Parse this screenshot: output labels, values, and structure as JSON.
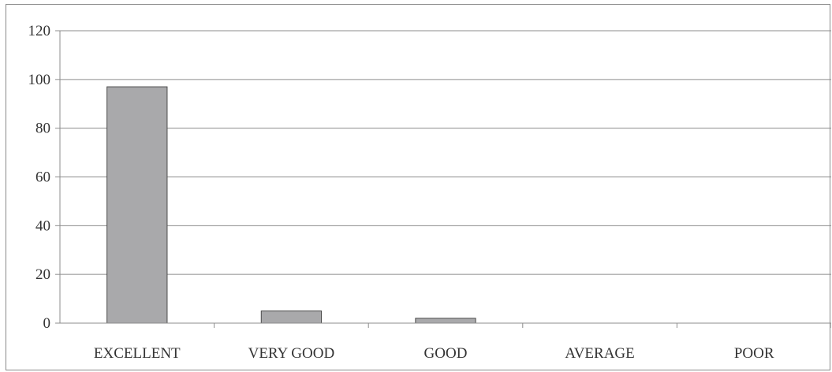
{
  "chart_data": {
    "type": "bar",
    "categories": [
      "EXCELLENT",
      "VERY GOOD",
      "GOOD",
      "AVERAGE",
      "POOR"
    ],
    "values": [
      97,
      5,
      2,
      0,
      0
    ],
    "ylim": [
      0,
      120
    ],
    "yticks": [
      "0",
      "20",
      "40",
      "60",
      "80",
      "100",
      "120"
    ],
    "grid": true,
    "legend": "none",
    "colors": {
      "bar_fill": "#a9a9ab",
      "bar_stroke": "#4a4a4a",
      "grid": "#8c8c8c",
      "axis": "#8c8c8c"
    }
  }
}
